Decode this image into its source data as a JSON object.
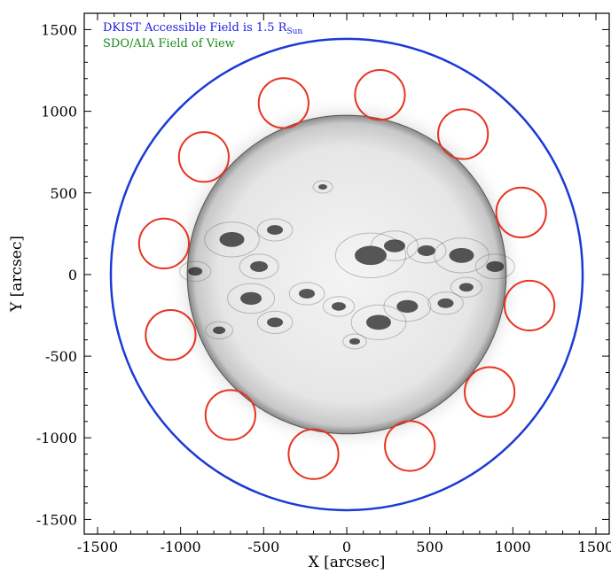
{
  "chart_data": {
    "type": "scatter",
    "title": "",
    "xlabel": "X [arcsec]",
    "ylabel": "Y [arcsec]",
    "xlim": [
      -1580,
      1580
    ],
    "ylim": [
      -1590,
      1600
    ],
    "xticks": [
      -1500,
      -1000,
      -500,
      0,
      500,
      1000,
      1500
    ],
    "xtick_labels": [
      "-1500",
      "-1000",
      "-500",
      "0",
      "500",
      "1000",
      "1500"
    ],
    "yticks": [
      -1500,
      -1000,
      -500,
      0,
      500,
      1000,
      1500
    ],
    "ytick_labels": [
      "-1500",
      "-1000",
      "-500",
      "0",
      "500",
      "1000",
      "1500"
    ],
    "grid": false,
    "legend": [
      {
        "text": "DKIST Accessible Field is 1.5 R",
        "subscript": "Sun",
        "color": "#1a1ae6"
      },
      {
        "text": "SDO/AIA Field of View",
        "subscript": "",
        "color": "#1a8a1a"
      }
    ],
    "solar_disk": {
      "center": [
        0,
        0
      ],
      "radius_arcsec": 960,
      "image": "grayscale-inverted-sun-icon"
    },
    "dkist_boundary": {
      "center": [
        0,
        0
      ],
      "radius_arcsec": 1420,
      "color": "#1a3ad6"
    },
    "target_fields": {
      "radius_arcsec": 150,
      "color": "#e83320",
      "centers": [
        [
          -380,
          1050
        ],
        [
          200,
          1100
        ],
        [
          700,
          860
        ],
        [
          -860,
          720
        ],
        [
          1050,
          380
        ],
        [
          -1100,
          190
        ],
        [
          1100,
          -190
        ],
        [
          -1060,
          -370
        ],
        [
          860,
          -720
        ],
        [
          -700,
          -860
        ],
        [
          -200,
          -1100
        ],
        [
          380,
          -1050
        ]
      ]
    }
  }
}
